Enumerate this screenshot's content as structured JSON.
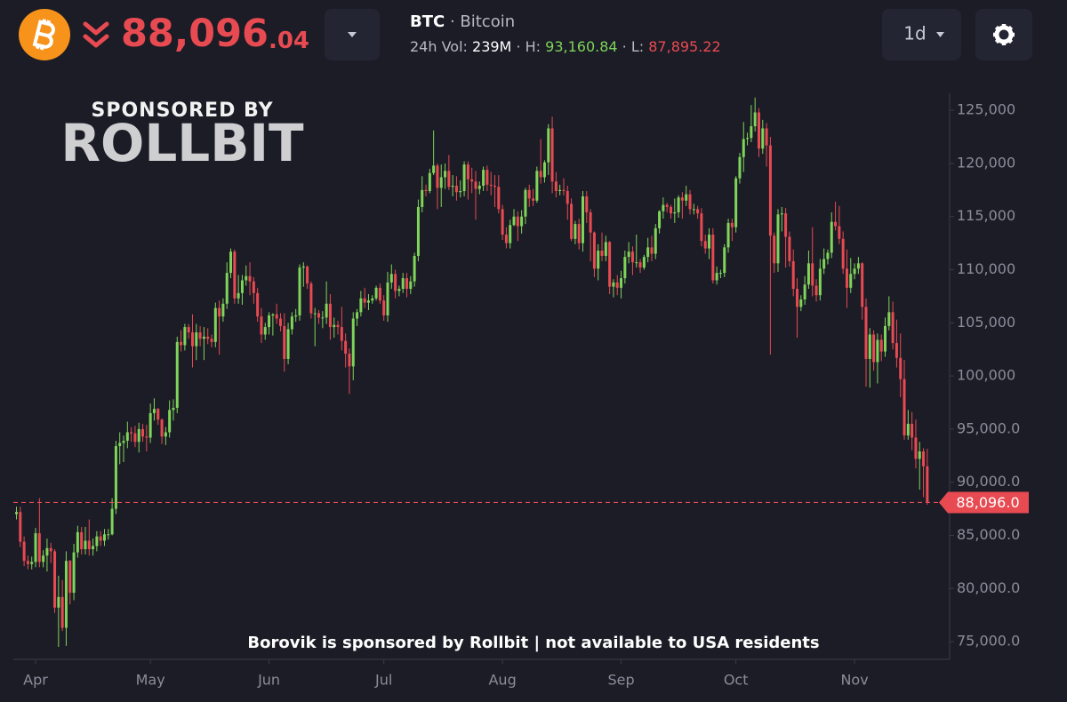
{
  "header": {
    "price_main": "88,096",
    "price_decimals": ".04",
    "symbol": "BTC",
    "name": "· Bitcoin",
    "vol_label": "24h Vol:",
    "vol": "239M",
    "high_label": "· H:",
    "high": "93,160.84",
    "low_label": "· L:",
    "low": "87,895.22",
    "interval": "1d"
  },
  "sponsor": {
    "title": "SPONSORED BY",
    "brand": "ROLLBIT",
    "footer": "Borovik is sponsored by Rollbit | not available to USA residents"
  },
  "chart_data": {
    "type": "candlestick",
    "categories": [
      null,
      null,
      null,
      null,
      null,
      "Apr",
      null,
      null,
      null,
      null,
      null,
      null,
      null,
      null,
      null,
      null,
      null,
      null,
      null,
      null,
      null,
      null,
      null,
      null,
      null,
      null,
      null,
      null,
      null,
      null,
      null,
      null,
      null,
      null,
      null,
      "May",
      null,
      null,
      null,
      null,
      null,
      null,
      null,
      null,
      null,
      null,
      null,
      null,
      null,
      null,
      null,
      null,
      null,
      null,
      null,
      null,
      null,
      null,
      null,
      null,
      null,
      null,
      null,
      null,
      null,
      null,
      "Jun",
      null,
      null,
      null,
      null,
      null,
      null,
      null,
      null,
      null,
      null,
      null,
      null,
      null,
      null,
      null,
      null,
      null,
      null,
      null,
      null,
      null,
      null,
      null,
      null,
      null,
      null,
      null,
      null,
      null,
      "Jul",
      null,
      null,
      null,
      null,
      null,
      null,
      null,
      null,
      null,
      null,
      null,
      null,
      null,
      null,
      null,
      null,
      null,
      null,
      null,
      null,
      null,
      null,
      null,
      null,
      null,
      null,
      null,
      null,
      null,
      null,
      "Aug",
      null,
      null,
      null,
      null,
      null,
      null,
      null,
      null,
      null,
      null,
      null,
      null,
      null,
      null,
      null,
      null,
      null,
      null,
      null,
      null,
      null,
      null,
      null,
      null,
      null,
      null,
      null,
      null,
      null,
      null,
      "Sep",
      null,
      null,
      null,
      null,
      null,
      null,
      null,
      null,
      null,
      null,
      null,
      null,
      null,
      null,
      null,
      null,
      null,
      null,
      null,
      null,
      null,
      null,
      null,
      null,
      null,
      null,
      null,
      null,
      null,
      "Oct",
      null,
      null,
      null,
      null,
      null,
      null,
      null,
      null,
      null,
      null,
      null,
      null,
      null,
      null,
      null,
      null,
      null,
      null,
      null,
      null,
      null,
      null,
      null,
      null,
      null,
      null,
      null,
      null,
      null,
      null,
      "Nov",
      null,
      null,
      null,
      null,
      null,
      null,
      null,
      null,
      null,
      null,
      null,
      null,
      null,
      null,
      null,
      null,
      null,
      null,
      null
    ],
    "open": [
      87000,
      87200,
      84400,
      82600,
      82300,
      82500,
      85200,
      82500,
      83100,
      83800,
      83500,
      78200,
      79200,
      76300,
      82600,
      79600,
      83400,
      85300,
      83700,
      84500,
      83700,
      84000,
      84900,
      84500,
      85100,
      85100,
      87500,
      93400,
      93700,
      93900,
      94700,
      94600,
      93800,
      95000,
      94300,
      94200,
      96500,
      96900,
      95900,
      94300,
      94700,
      96800,
      97000,
      103200,
      102900,
      104600,
      104100,
      102800,
      104100,
      103500,
      103700,
      103500,
      103200,
      106400,
      105600,
      106800,
      109700,
      111700,
      107300,
      107800,
      109000,
      109400,
      108900,
      107800,
      105600,
      103900,
      104600,
      105700,
      105800,
      105400,
      104700,
      101600,
      104400,
      105600,
      105700,
      110200,
      110300,
      108700,
      105900,
      105900,
      105500,
      105500,
      106800,
      104600,
      104800,
      104600,
      103300,
      102100,
      100900,
      105400,
      106000,
      107300,
      106900,
      107100,
      107300,
      108300,
      107100,
      105700,
      108800,
      109600,
      108000,
      108200,
      109200,
      108200,
      108900,
      111300,
      115900,
      117500,
      117400,
      119100,
      119800,
      117700,
      118700,
      119300,
      117800,
      117900,
      117300,
      117400,
      119900,
      118500,
      118300,
      117600,
      117900,
      119400,
      118000,
      117900,
      117800,
      115700,
      113300,
      112500,
      114200,
      115000,
      114100,
      115000,
      117500,
      116700,
      116500,
      119300,
      118700,
      120100,
      123300,
      118300,
      117400,
      117500,
      117400,
      116200,
      112900,
      114300,
      112500,
      116900,
      115400,
      113500,
      110100,
      111800,
      111300,
      112600,
      108400,
      108800,
      108300,
      109200,
      111200,
      111700,
      110700,
      110700,
      110200,
      111200,
      112100,
      111500,
      113900,
      115500,
      116100,
      115900,
      115300,
      115400,
      116800,
      116500,
      117100,
      115700,
      115700,
      115300,
      112700,
      112000,
      113300,
      109000,
      109700,
      109700,
      112100,
      114400,
      114000,
      118600,
      120600,
      122300,
      122400,
      123500,
      124800,
      121400,
      123300,
      121700,
      113200,
      110600,
      115200,
      115300,
      113100,
      110800,
      108200,
      106500,
      107200,
      108600,
      110600,
      108500,
      107600,
      110100,
      111000,
      111600,
      114500,
      114100,
      112900,
      110100,
      108300,
      109600,
      110100,
      110600,
      106500,
      101600,
      103900,
      101300,
      103400,
      102300,
      104700,
      106000,
      103100,
      101700,
      99700,
      94400,
      95500,
      94200,
      92200,
      92900,
      91500
    ],
    "high": [
      87700,
      87700,
      84900,
      83100,
      83000,
      85700,
      88500,
      83600,
      84700,
      84300,
      83700,
      81200,
      80800,
      83500,
      82700,
      84200,
      85900,
      85800,
      85800,
      86500,
      84700,
      85400,
      85400,
      85600,
      85600,
      88500,
      93900,
      94700,
      94400,
      95700,
      95200,
      95300,
      95600,
      95500,
      95400,
      97400,
      97900,
      97000,
      96000,
      95200,
      97700,
      97800,
      103700,
      104300,
      104900,
      104900,
      105800,
      104900,
      104700,
      104600,
      104500,
      103900,
      106900,
      107100,
      107300,
      110700,
      112000,
      111900,
      109500,
      109500,
      110400,
      110700,
      109300,
      108300,
      106400,
      105000,
      106000,
      105900,
      106800,
      105900,
      105900,
      105000,
      106000,
      106300,
      110500,
      110700,
      110400,
      108900,
      106400,
      106200,
      106100,
      108900,
      107700,
      105500,
      105200,
      106500,
      104000,
      102600,
      106000,
      106300,
      108000,
      108300,
      107700,
      107600,
      108500,
      108700,
      107600,
      109800,
      110500,
      110000,
      108500,
      109700,
      109700,
      109400,
      111600,
      116600,
      118800,
      118000,
      119500,
      123100,
      120000,
      119900,
      120000,
      120800,
      118900,
      118800,
      118400,
      120200,
      120200,
      119600,
      119300,
      118300,
      119700,
      119800,
      119200,
      118900,
      118900,
      116100,
      114000,
      114700,
      115700,
      115500,
      115600,
      117700,
      118000,
      117600,
      119700,
      122300,
      120300,
      123700,
      124400,
      119200,
      118000,
      118600,
      117900,
      116700,
      114600,
      114800,
      117400,
      117400,
      115700,
      113600,
      112400,
      113500,
      113200,
      112700,
      109100,
      109500,
      109900,
      111800,
      112600,
      112200,
      113300,
      111000,
      111400,
      113000,
      113200,
      114300,
      115600,
      116800,
      116300,
      116100,
      116700,
      117000,
      117300,
      117900,
      117500,
      116200,
      116000,
      115800,
      113300,
      113900,
      113900,
      110300,
      110000,
      112400,
      114800,
      114800,
      118800,
      121000,
      123900,
      122900,
      125500,
      126200,
      125200,
      124100,
      123800,
      122500,
      113500,
      115700,
      115900,
      115800,
      113600,
      111900,
      109200,
      107600,
      109400,
      111800,
      114000,
      109100,
      111000,
      112000,
      111900,
      115400,
      116400,
      116000,
      113600,
      111900,
      111100,
      110600,
      111200,
      110700,
      107300,
      104500,
      104300,
      104000,
      103900,
      105500,
      107500,
      107000,
      105300,
      104000,
      101500,
      96800,
      96600,
      95900,
      93800,
      93200,
      93160
    ],
    "low": [
      86500,
      83900,
      82100,
      81800,
      81800,
      82000,
      82000,
      82000,
      81600,
      82400,
      77700,
      74500,
      76000,
      74600,
      78500,
      78900,
      82900,
      83200,
      83200,
      83100,
      83100,
      83500,
      84000,
      84000,
      84600,
      85000,
      87000,
      91700,
      91900,
      93200,
      93800,
      93300,
      92800,
      93800,
      92900,
      93700,
      95800,
      95400,
      93600,
      93500,
      94200,
      95800,
      96500,
      102300,
      102400,
      103500,
      100800,
      101500,
      102800,
      101500,
      103000,
      102700,
      102700,
      102000,
      105100,
      106300,
      109200,
      106800,
      106800,
      106700,
      108500,
      107600,
      106800,
      105100,
      103100,
      103400,
      103900,
      103800,
      104900,
      104200,
      100400,
      101100,
      103900,
      105100,
      105200,
      108400,
      108200,
      105400,
      102800,
      104900,
      104500,
      104900,
      103400,
      103600,
      103900,
      102400,
      100800,
      98300,
      99600,
      104700,
      105600,
      106400,
      106200,
      106800,
      107100,
      106800,
      105200,
      105100,
      108200,
      107300,
      107500,
      107800,
      107400,
      107700,
      108400,
      110800,
      115400,
      116900,
      117200,
      118900,
      115700,
      115900,
      117600,
      117500,
      116900,
      116500,
      116800,
      116900,
      116600,
      117200,
      114700,
      117100,
      117400,
      117400,
      117000,
      115900,
      115300,
      112800,
      112000,
      112000,
      114100,
      112700,
      113400,
      114300,
      115900,
      116000,
      116300,
      118100,
      118200,
      118900,
      117200,
      116800,
      117000,
      117000,
      114700,
      112700,
      112400,
      111900,
      111700,
      114400,
      110800,
      109300,
      109000,
      110800,
      110800,
      107700,
      107400,
      107600,
      107300,
      108700,
      110600,
      109500,
      110200,
      109700,
      110000,
      110700,
      110800,
      111000,
      113400,
      114800,
      115400,
      114800,
      114400,
      114900,
      114800,
      116000,
      115200,
      115200,
      114800,
      112200,
      111500,
      111000,
      108700,
      108600,
      109200,
      109300,
      111600,
      112700,
      113500,
      118100,
      119200,
      121700,
      122000,
      123000,
      120600,
      120900,
      119700,
      102000,
      109700,
      109800,
      113600,
      110200,
      110300,
      107500,
      103600,
      106100,
      106700,
      108200,
      107500,
      107000,
      107100,
      109600,
      110500,
      111100,
      113700,
      112400,
      109600,
      106400,
      107800,
      109100,
      109600,
      105300,
      99000,
      98900,
      100500,
      99300,
      101400,
      101800,
      104300,
      102500,
      100800,
      98000,
      94000,
      94000,
      93000,
      91300,
      89300,
      88600,
      87895
    ],
    "close": [
      87200,
      84400,
      82600,
      82300,
      82500,
      85200,
      82500,
      83100,
      83800,
      83500,
      78200,
      79200,
      76300,
      82600,
      79600,
      83400,
      85300,
      83700,
      84500,
      83700,
      84000,
      84900,
      84500,
      85100,
      85100,
      87500,
      93400,
      93700,
      93900,
      94700,
      94600,
      93800,
      95000,
      94300,
      94200,
      96500,
      96900,
      95900,
      94300,
      94700,
      96800,
      97000,
      103200,
      102900,
      104600,
      104100,
      102800,
      104100,
      103500,
      103700,
      103500,
      103200,
      106400,
      105600,
      106800,
      109700,
      111700,
      107300,
      107800,
      109000,
      109400,
      108900,
      107800,
      105600,
      103900,
      104600,
      105700,
      105800,
      105400,
      104700,
      101600,
      104400,
      105600,
      105700,
      110200,
      110300,
      108700,
      105900,
      105900,
      105500,
      105500,
      106800,
      104600,
      104800,
      104600,
      103300,
      102100,
      100900,
      105400,
      106000,
      107300,
      106900,
      107100,
      107300,
      108300,
      107100,
      105700,
      108800,
      109600,
      108000,
      108200,
      109200,
      108200,
      108900,
      111300,
      115900,
      117500,
      117400,
      119100,
      119800,
      117700,
      118700,
      119300,
      117800,
      117900,
      117300,
      117400,
      119900,
      118500,
      118300,
      117600,
      117900,
      119400,
      118000,
      117900,
      117800,
      115700,
      113300,
      112500,
      114200,
      115000,
      114100,
      115000,
      117500,
      116700,
      116500,
      119300,
      118700,
      120100,
      123300,
      118300,
      117400,
      117500,
      117400,
      116200,
      112900,
      114300,
      112500,
      116900,
      115400,
      113500,
      110100,
      111800,
      111300,
      112600,
      108400,
      108800,
      108300,
      109200,
      111200,
      111700,
      110700,
      110700,
      110200,
      111200,
      112100,
      111500,
      113900,
      115500,
      116100,
      115900,
      115300,
      115400,
      116800,
      116500,
      117100,
      115700,
      115700,
      115300,
      112700,
      112000,
      113300,
      109000,
      109700,
      109700,
      112100,
      114400,
      114000,
      118600,
      120600,
      122300,
      122400,
      123500,
      124800,
      121400,
      123300,
      121700,
      113200,
      110600,
      115200,
      115300,
      113100,
      110800,
      108200,
      106500,
      107200,
      108600,
      110600,
      108500,
      107600,
      110100,
      111000,
      111600,
      114500,
      114100,
      112900,
      110100,
      108300,
      109600,
      110100,
      110600,
      106500,
      101600,
      103900,
      101300,
      103400,
      102300,
      104700,
      106000,
      103100,
      101700,
      99700,
      94400,
      95500,
      94200,
      92200,
      92900,
      91500,
      88096
    ],
    "up_color": "#7fd45a",
    "down_color": "#e84a52",
    "ylim": [
      73500,
      126600
    ],
    "yticks": [
      {
        "value": 75000,
        "label": "75,000.0"
      },
      {
        "value": 80000,
        "label": "80,000.0"
      },
      {
        "value": 85000,
        "label": "85,000.0"
      },
      {
        "value": 90000,
        "label": "90,000.0"
      },
      {
        "value": 95000,
        "label": "95,000.0"
      },
      {
        "value": 100000,
        "label": "100,000"
      },
      {
        "value": 105000,
        "label": "105,000"
      },
      {
        "value": 110000,
        "label": "110,000"
      },
      {
        "value": 115000,
        "label": "115,000"
      },
      {
        "value": 120000,
        "label": "120,000"
      },
      {
        "value": 125000,
        "label": "125,000"
      }
    ],
    "last_price": {
      "value": 88096,
      "label": "88,096.0"
    }
  }
}
